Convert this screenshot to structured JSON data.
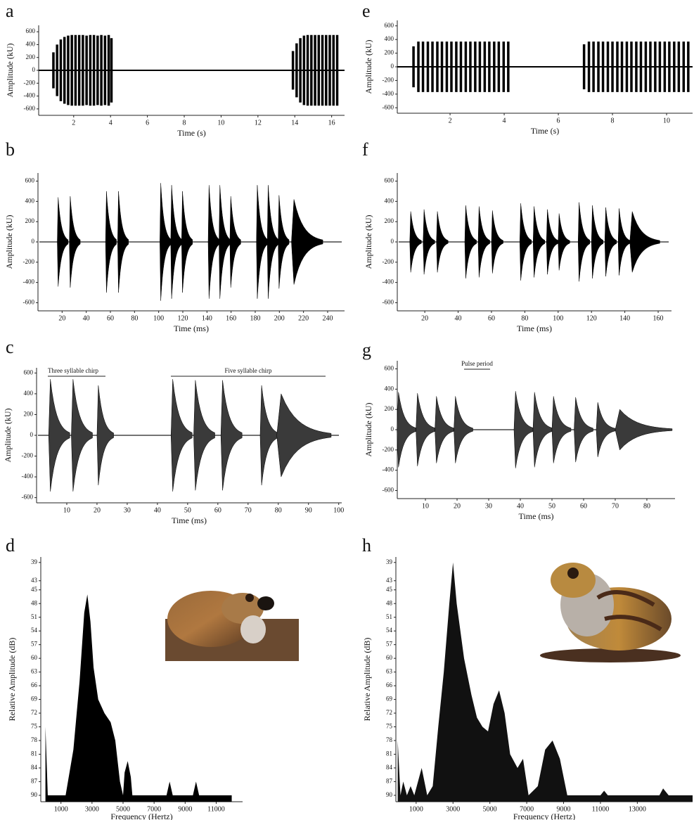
{
  "chart_data": [
    {
      "panel": "a",
      "type": "pulse",
      "xlabel": "Time (s)",
      "ylabel": "Amplitude (kU)",
      "color": "#000000",
      "x": [
        0.9,
        1.1,
        1.3,
        1.5,
        1.7,
        1.9,
        2.1,
        2.3,
        2.5,
        2.7,
        2.9,
        3.1,
        3.3,
        3.5,
        3.7,
        3.9,
        4.05,
        13.9,
        14.1,
        14.3,
        14.5,
        14.7,
        14.9,
        15.1,
        15.3,
        15.5,
        15.7,
        15.9,
        16.1,
        16.3
      ],
      "values": [
        280,
        400,
        480,
        520,
        540,
        550,
        550,
        550,
        550,
        540,
        550,
        550,
        540,
        550,
        540,
        550,
        500,
        300,
        420,
        500,
        540,
        550,
        550,
        550,
        550,
        550,
        550,
        550,
        550,
        550
      ],
      "xlim": [
        0.1,
        16.7
      ],
      "ylim": [
        -700,
        700
      ],
      "xticks": [
        2,
        4,
        6,
        8,
        10,
        12,
        14,
        16
      ],
      "yticks": [
        -600,
        -400,
        -200,
        0,
        200,
        400,
        600
      ]
    },
    {
      "panel": "b",
      "type": "syllable",
      "xlabel": "Time (ms)",
      "ylabel": "Amplitude (kU)",
      "color": "#000000",
      "x": [
        16,
        26,
        56,
        66,
        101,
        110,
        119,
        141,
        150,
        159,
        181,
        190,
        199,
        210
      ],
      "values": [
        440,
        450,
        500,
        500,
        580,
        560,
        500,
        560,
        560,
        450,
        560,
        560,
        460,
        420
      ],
      "durations": [
        9,
        9,
        9,
        9,
        9,
        9,
        9,
        9,
        9,
        9,
        9,
        9,
        9,
        26
      ],
      "xlim": [
        0,
        254
      ],
      "ylim": [
        -680,
        680
      ],
      "xticks": [
        20,
        40,
        60,
        80,
        100,
        120,
        140,
        160,
        180,
        200,
        220,
        240
      ],
      "yticks": [
        -600,
        -400,
        -200,
        0,
        200,
        400,
        600
      ]
    },
    {
      "panel": "c",
      "type": "syllable",
      "xlabel": "Time (ms)",
      "ylabel": "Amplitude (kU)",
      "color": "#3a3a3a",
      "annotations": [
        "Three syllable chirp",
        "Five syllable chirp"
      ],
      "x": [
        4,
        11.5,
        20,
        44.5,
        52,
        61,
        74,
        79.5
      ],
      "values": [
        540,
        540,
        480,
        540,
        530,
        530,
        480,
        400
      ],
      "durations": [
        7,
        7,
        5.5,
        7,
        7,
        7,
        6,
        18
      ],
      "xlim": [
        0,
        101
      ],
      "ylim": [
        -650,
        650
      ],
      "xticks": [
        10,
        20,
        30,
        40,
        50,
        60,
        70,
        80,
        90,
        100
      ],
      "yticks": [
        -600,
        -400,
        -200,
        0,
        200,
        400,
        600
      ]
    },
    {
      "panel": "d",
      "type": "area",
      "xlabel": "Frequency (Hertz)",
      "ylabel": "Relative Amplitude (dB)",
      "color": "#000000",
      "x": [
        0,
        150,
        1300,
        1800,
        2200,
        2500,
        2700,
        2900,
        3100,
        3400,
        3800,
        4200,
        4500,
        4800,
        5000,
        5100,
        5300,
        5500,
        5600,
        7800,
        8000,
        8200,
        9500,
        9700,
        9900,
        12000
      ],
      "values": [
        75,
        90,
        90,
        80,
        65,
        50,
        46,
        52,
        62,
        69,
        72,
        74,
        78,
        87,
        90,
        85,
        82.5,
        86,
        90,
        90,
        87,
        90,
        90,
        87,
        90,
        90
      ],
      "xlim": [
        -300,
        12700
      ],
      "ylim": [
        91.4,
        37.8
      ],
      "xticks": [
        1000,
        3000,
        5000,
        7000,
        9000,
        11000
      ],
      "yticks": [
        39,
        43,
        45,
        48,
        51,
        54,
        57,
        60,
        63,
        66,
        69,
        72,
        75,
        78,
        81,
        84,
        87,
        90
      ]
    },
    {
      "panel": "e",
      "type": "pulse",
      "xlabel": "Time (s)",
      "ylabel": "Amplitude (kU)",
      "color": "#000000",
      "x": [
        0.65,
        0.83,
        1.0,
        1.18,
        1.35,
        1.53,
        1.7,
        1.88,
        2.05,
        2.23,
        2.4,
        2.58,
        2.75,
        2.93,
        3.1,
        3.28,
        3.45,
        3.63,
        3.8,
        3.98,
        4.15,
        6.95,
        7.13,
        7.3,
        7.48,
        7.65,
        7.83,
        8.0,
        8.18,
        8.35,
        8.53,
        8.7,
        8.88,
        9.05,
        9.23,
        9.4,
        9.58,
        9.75,
        9.93,
        10.1,
        10.28,
        10.45,
        10.63,
        10.8
      ],
      "values": [
        300,
        370,
        370,
        370,
        370,
        370,
        370,
        370,
        370,
        370,
        370,
        370,
        370,
        370,
        370,
        370,
        370,
        370,
        370,
        370,
        370,
        330,
        370,
        370,
        370,
        370,
        370,
        370,
        370,
        370,
        370,
        370,
        370,
        370,
        370,
        370,
        370,
        370,
        370,
        370,
        370,
        370,
        370,
        370
      ],
      "xlim": [
        0.05,
        10.96
      ],
      "ylim": [
        -680,
        680
      ],
      "xticks": [
        2,
        4,
        6,
        8,
        10
      ],
      "yticks": [
        -600,
        -400,
        -200,
        0,
        200,
        400,
        600
      ]
    },
    {
      "panel": "f",
      "type": "syllable",
      "xlabel": "Time (ms)",
      "ylabel": "Amplitude (kU)",
      "color": "#000000",
      "x": [
        11,
        19,
        27,
        44,
        52,
        60,
        77,
        85,
        93,
        100,
        112,
        120,
        128,
        136,
        143
      ],
      "values": [
        300,
        320,
        300,
        360,
        350,
        310,
        380,
        350,
        320,
        280,
        390,
        360,
        340,
        330,
        300
      ],
      "durations": [
        7,
        7,
        7,
        7,
        7,
        7,
        7,
        7,
        7,
        7,
        7,
        7,
        7,
        7,
        18
      ],
      "xlim": [
        3.5,
        168
      ],
      "ylim": [
        -680,
        680
      ],
      "xticks": [
        20,
        40,
        60,
        80,
        100,
        120,
        140,
        160
      ],
      "yticks": [
        -600,
        -400,
        -200,
        0,
        200,
        400,
        600
      ]
    },
    {
      "panel": "g",
      "type": "syllable",
      "xlabel": "Time (ms)",
      "ylabel": "Amplitude (kU)",
      "color": "#3a3a3a",
      "annotations": [
        "Pulse period"
      ],
      "x": [
        1,
        7,
        13,
        19,
        38,
        44,
        50,
        57,
        64,
        70
      ],
      "values": [
        370,
        360,
        330,
        330,
        380,
        370,
        330,
        320,
        270,
        200
      ],
      "durations": [
        6,
        6,
        6,
        6,
        6,
        6,
        6,
        6,
        6,
        18
      ],
      "xlim": [
        1.1,
        88.9
      ],
      "ylim": [
        -680,
        680
      ],
      "xticks": [
        10,
        20,
        30,
        40,
        50,
        60,
        70,
        80
      ],
      "yticks": [
        -600,
        -400,
        -200,
        0,
        200,
        400,
        600
      ]
    },
    {
      "panel": "h",
      "type": "area",
      "xlabel": "Frequency (Hertz)",
      "ylabel": "Relative Amplitude (dB)",
      "color": "#111111",
      "x": [
        0,
        150,
        300,
        500,
        700,
        900,
        1300,
        1600,
        1900,
        2200,
        2500,
        2800,
        3000,
        3200,
        3600,
        4000,
        4300,
        4600,
        4900,
        5200,
        5500,
        5800,
        6100,
        6500,
        6800,
        7100,
        7600,
        8000,
        8400,
        8800,
        9200,
        11000,
        11200,
        11400,
        14200,
        14400,
        14700,
        16000
      ],
      "values": [
        78,
        90,
        87,
        90,
        88,
        90,
        84,
        90,
        88,
        75,
        63,
        48,
        39,
        48,
        60,
        68,
        73,
        75,
        76,
        70,
        67,
        72,
        81,
        84,
        82,
        90,
        88,
        80,
        78,
        82,
        90,
        90,
        89,
        90,
        90,
        88.5,
        90,
        90
      ],
      "xlim": [
        -100,
        16000
      ],
      "ylim": [
        91.4,
        37.8
      ],
      "xticks": [
        1000,
        3000,
        5000,
        7000,
        9000,
        11000,
        13000
      ],
      "yticks": [
        39,
        43,
        45,
        48,
        51,
        54,
        57,
        60,
        63,
        66,
        69,
        72,
        75,
        78,
        81,
        84,
        87,
        90
      ]
    }
  ]
}
